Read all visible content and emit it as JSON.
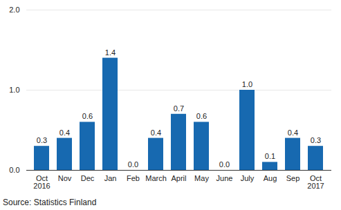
{
  "chart_data": {
    "type": "bar",
    "categories": [
      "Oct\n2016",
      "Nov",
      "Dec",
      "Jan",
      "Feb",
      "March",
      "April",
      "May",
      "June",
      "July",
      "Aug",
      "Sep",
      "Oct\n2017"
    ],
    "values": [
      0.3,
      0.4,
      0.6,
      1.4,
      0,
      0.4,
      0.7,
      0.6,
      0,
      1,
      0.1,
      0.4,
      0.3
    ],
    "value_labels": [
      "0.3",
      "0.4",
      "0.6",
      "1.4",
      "0.0",
      "0.4",
      "0.7",
      "0.6",
      "0.0",
      "1.0",
      "0.1",
      "0.4",
      "0.3"
    ],
    "color": "#1769b0",
    "ylim": [
      0,
      2
    ],
    "yticks": [
      0,
      1,
      2
    ],
    "grid": true,
    "data_labels": true,
    "source": "Source: Statistics Finland"
  }
}
